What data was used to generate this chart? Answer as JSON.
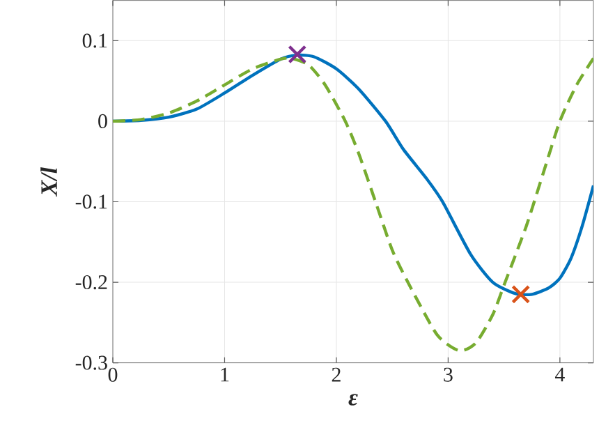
{
  "chart_data": {
    "type": "line",
    "xlabel": "ε",
    "ylabel": "X/l",
    "xlim": [
      0,
      4.3
    ],
    "ylim": [
      -0.3,
      0.15
    ],
    "xticks": [
      0,
      1,
      2,
      3,
      4
    ],
    "yticks": [
      -0.3,
      -0.2,
      -0.1,
      0,
      0.1
    ],
    "grid": true,
    "series": [
      {
        "color": "#0072bd",
        "line_style": "solid",
        "x": [
          0,
          0.25,
          0.5,
          0.75,
          1.0,
          1.25,
          1.5,
          1.65,
          1.8,
          2.0,
          2.2,
          2.44,
          2.6,
          2.8,
          2.95,
          3.2,
          3.4,
          3.6,
          3.75,
          3.9,
          4.0,
          4.1,
          4.2,
          4.3
        ],
        "values": [
          0,
          0.001,
          0.005,
          0.015,
          0.035,
          0.057,
          0.077,
          0.082,
          0.08,
          0.065,
          0.04,
          0,
          -0.035,
          -0.07,
          -0.1,
          -0.165,
          -0.2,
          -0.214,
          -0.215,
          -0.207,
          -0.195,
          -0.17,
          -0.13,
          -0.08
        ]
      },
      {
        "color": "#77ac30",
        "line_style": "dashed",
        "x": [
          0,
          0.25,
          0.5,
          0.75,
          1.0,
          1.25,
          1.5,
          1.6,
          1.75,
          1.9,
          2.08,
          2.2,
          2.35,
          2.5,
          2.64,
          2.9,
          3.1,
          3.25,
          3.4,
          3.51,
          3.7,
          3.85,
          4.0,
          4.15,
          4.3
        ],
        "values": [
          0,
          0.002,
          0.01,
          0.025,
          0.045,
          0.065,
          0.077,
          0.078,
          0.07,
          0.045,
          0,
          -0.04,
          -0.1,
          -0.16,
          -0.2,
          -0.265,
          -0.285,
          -0.275,
          -0.24,
          -0.2,
          -0.13,
          -0.065,
          0,
          0.045,
          0.078
        ]
      },
      {
        "type": "scatter",
        "color": "#7e2f8e",
        "marker": "cross",
        "x": [
          1.65
        ],
        "values": [
          0.083
        ]
      },
      {
        "type": "scatter",
        "color": "#d95319",
        "marker": "cross",
        "x": [
          3.65
        ],
        "values": [
          -0.215
        ]
      }
    ]
  }
}
